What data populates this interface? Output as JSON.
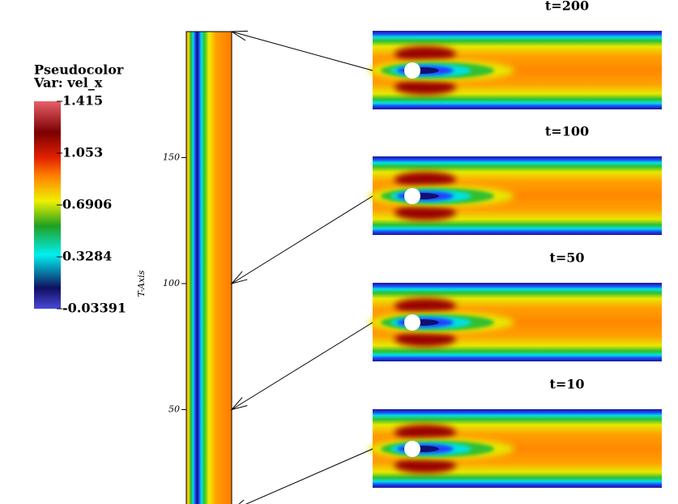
{
  "chart_data": {
    "type": "field",
    "legend": {
      "title": "Pseudocolor",
      "variable": "Var: vel_x",
      "ticks": [
        1.415,
        1.053,
        0.6906,
        0.3284,
        -0.03391
      ]
    },
    "y_label": "T-Axis",
    "ylim": [
      0,
      200
    ],
    "yticks": [
      50,
      100,
      150
    ],
    "panels": [
      {
        "label": "t=200",
        "t": 200
      },
      {
        "label": "t=100",
        "t": 100
      },
      {
        "label": "t=50",
        "t": 50
      },
      {
        "label": "t=10",
        "t": 10
      }
    ]
  }
}
